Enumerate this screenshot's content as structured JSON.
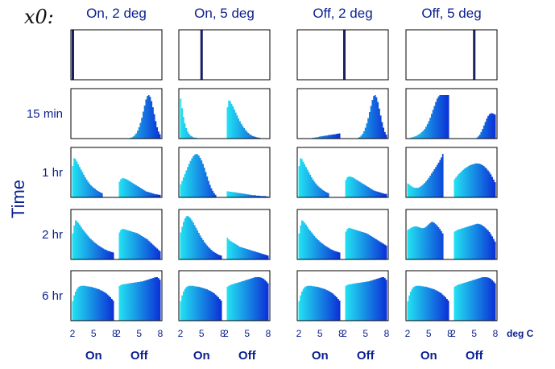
{
  "chart_data": {
    "type": "area",
    "x0_label": "x0:",
    "columns": [
      "On, 2 deg",
      "On, 5 deg",
      "Off, 2 deg",
      "Off, 5 deg"
    ],
    "rows": [
      "",
      "15 min",
      "1 hr",
      "2 hr",
      "6 hr"
    ],
    "ylabel": "Time",
    "xunit": "deg C",
    "segments": [
      "On",
      "Off"
    ],
    "xticks": [
      "2",
      "5",
      "8"
    ],
    "xlim_per_segment": [
      2,
      8
    ],
    "colors": {
      "low": "#22e3f2",
      "high": "#0b2fd6",
      "frame": "#000000",
      "initial": "#1a1f5e"
    },
    "initial_positions": [
      {
        "segment": "On",
        "x": 2
      },
      {
        "segment": "On",
        "x": 5
      },
      {
        "segment": "Off",
        "x": 2
      },
      {
        "segment": "Off",
        "x": 5
      }
    ],
    "panels": [
      [
        {
          "on": [
            0,
            0,
            0,
            0,
            0,
            0,
            0,
            0,
            0,
            0,
            0,
            0,
            0,
            0,
            0,
            0,
            0,
            0,
            0,
            0,
            0,
            0,
            0,
            0,
            0,
            0,
            0,
            0,
            0,
            0
          ],
          "off": [
            0,
            0,
            0,
            0,
            0,
            0,
            0,
            0.01,
            0.02,
            0.03,
            0.05,
            0.08,
            0.12,
            0.18,
            0.26,
            0.36,
            0.48,
            0.62,
            0.76,
            0.9,
            0.98,
            1,
            0.96,
            0.86,
            0.72,
            0.56,
            0.4,
            0.26,
            0.16,
            0.1
          ]
        },
        {
          "on": [
            0.92,
            0.7,
            0.5,
            0.35,
            0.24,
            0.16,
            0.11,
            0.07,
            0.05,
            0.03,
            0.02,
            0.02,
            0.01,
            0.01,
            0.01,
            0,
            0,
            0,
            0,
            0,
            0,
            0,
            0,
            0,
            0,
            0,
            0,
            0,
            0,
            0
          ],
          "off": [
            0.72,
            0.88,
            0.86,
            0.8,
            0.74,
            0.67,
            0.6,
            0.53,
            0.46,
            0.4,
            0.34,
            0.29,
            0.24,
            0.2,
            0.16,
            0.13,
            0.1,
            0.08,
            0.06,
            0.05,
            0.04,
            0.03,
            0.02,
            0.02,
            0.01,
            0.01,
            0.01,
            0.01,
            0,
            0
          ]
        },
        {
          "on": [
            0,
            0,
            0,
            0,
            0,
            0,
            0,
            0,
            0.01,
            0.01,
            0.02,
            0.02,
            0.03,
            0.03,
            0.04,
            0.05,
            0.05,
            0.06,
            0.06,
            0.07,
            0.07,
            0.08,
            0.08,
            0.09,
            0.09,
            0.1,
            0.1,
            0.11,
            0.11,
            0.12
          ],
          "off": [
            0,
            0,
            0,
            0,
            0,
            0,
            0,
            0,
            0.01,
            0.02,
            0.04,
            0.07,
            0.11,
            0.17,
            0.25,
            0.35,
            0.47,
            0.61,
            0.75,
            0.89,
            0.98,
            1,
            0.95,
            0.84,
            0.69,
            0.53,
            0.38,
            0.25,
            0.15,
            0.09
          ]
        },
        {
          "on": [
            0.01,
            0.01,
            0.02,
            0.03,
            0.04,
            0.05,
            0.06,
            0.08,
            0.1,
            0.12,
            0.15,
            0.18,
            0.22,
            0.27,
            0.33,
            0.4,
            0.48,
            0.57,
            0.66,
            0.75,
            0.84,
            0.92,
            0.97,
            1,
            1,
            1,
            1,
            1,
            1,
            1
          ],
          "off": [
            0,
            0,
            0,
            0,
            0,
            0,
            0,
            0,
            0,
            0,
            0,
            0,
            0,
            0,
            0,
            0,
            0.02,
            0.05,
            0.09,
            0.15,
            0.22,
            0.3,
            0.38,
            0.46,
            0.52,
            0.56,
            0.58,
            0.58,
            0.57,
            0.55
          ]
        }
      ],
      [
        {
          "on": [
            0.72,
            0.9,
            0.88,
            0.82,
            0.76,
            0.7,
            0.64,
            0.58,
            0.52,
            0.46,
            0.41,
            0.36,
            0.32,
            0.28,
            0.25,
            0.22,
            0.2,
            0.17,
            0.15,
            0.13,
            0.11,
            0.1,
            0,
            0,
            0,
            0,
            0,
            0,
            0,
            0
          ],
          "off": [
            0.36,
            0.42,
            0.44,
            0.44,
            0.43,
            0.42,
            0.4,
            0.38,
            0.36,
            0.34,
            0.32,
            0.3,
            0.28,
            0.26,
            0.24,
            0.22,
            0.2,
            0.18,
            0.16,
            0.14,
            0.13,
            0.12,
            0.11,
            0.1,
            0.09,
            0.08,
            0.07,
            0.07,
            0.06,
            0.06
          ]
        },
        {
          "on": [
            0.3,
            0.38,
            0.46,
            0.54,
            0.62,
            0.7,
            0.77,
            0.84,
            0.9,
            0.95,
            0.98,
            1,
            0.99,
            0.96,
            0.91,
            0.85,
            0.77,
            0.68,
            0.58,
            0.48,
            0.38,
            0.29,
            0.21,
            0.15,
            0.1,
            0.06,
            0,
            0,
            0,
            0
          ],
          "off": [
            0.14,
            0.14,
            0.13,
            0.13,
            0.12,
            0.12,
            0.11,
            0.11,
            0.1,
            0.1,
            0.09,
            0.09,
            0.08,
            0.08,
            0.07,
            0.07,
            0.06,
            0.06,
            0.05,
            0.05,
            0.05,
            0.04,
            0.04,
            0.04,
            0.03,
            0.03,
            0.03,
            0.03,
            0.02,
            0.02
          ]
        },
        {
          "on": [
            0.72,
            0.9,
            0.88,
            0.82,
            0.76,
            0.7,
            0.64,
            0.58,
            0.52,
            0.46,
            0.41,
            0.36,
            0.32,
            0.28,
            0.25,
            0.22,
            0.2,
            0.17,
            0.15,
            0.13,
            0.11,
            0.1,
            0,
            0,
            0,
            0,
            0,
            0,
            0,
            0
          ],
          "off": [
            0.4,
            0.46,
            0.48,
            0.48,
            0.47,
            0.46,
            0.44,
            0.42,
            0.4,
            0.38,
            0.36,
            0.34,
            0.32,
            0.3,
            0.28,
            0.26,
            0.24,
            0.22,
            0.2,
            0.18,
            0.16,
            0.15,
            0.14,
            0.13,
            0.12,
            0.11,
            0.1,
            0.09,
            0.08,
            0.08
          ]
        },
        {
          "on": [
            0.32,
            0.3,
            0.27,
            0.25,
            0.23,
            0.22,
            0.22,
            0.22,
            0.23,
            0.25,
            0.27,
            0.3,
            0.33,
            0.37,
            0.41,
            0.45,
            0.5,
            0.55,
            0.6,
            0.65,
            0.7,
            0.75,
            0.8,
            0.86,
            0.92,
            1,
            0,
            0,
            0,
            0
          ],
          "off": [
            0.42,
            0.46,
            0.5,
            0.54,
            0.57,
            0.6,
            0.63,
            0.66,
            0.68,
            0.7,
            0.72,
            0.74,
            0.75,
            0.76,
            0.77,
            0.78,
            0.78,
            0.78,
            0.77,
            0.76,
            0.74,
            0.72,
            0.69,
            0.66,
            0.62,
            0.58,
            0.53,
            0.47,
            0.41,
            0.35
          ]
        }
      ],
      [
        {
          "on": [
            0.6,
            0.78,
            0.9,
            0.88,
            0.84,
            0.8,
            0.75,
            0.7,
            0.66,
            0.62,
            0.58,
            0.54,
            0.5,
            0.47,
            0.44,
            0.41,
            0.38,
            0.36,
            0.33,
            0.31,
            0.29,
            0.27,
            0.25,
            0.23,
            0.22,
            0.2,
            0.19,
            0.18,
            0.17,
            0.16
          ],
          "off": [
            0.62,
            0.68,
            0.7,
            0.7,
            0.69,
            0.68,
            0.67,
            0.66,
            0.65,
            0.64,
            0.63,
            0.62,
            0.61,
            0.6,
            0.58,
            0.56,
            0.54,
            0.52,
            0.5,
            0.48,
            0.46,
            0.43,
            0.4,
            0.37,
            0.34,
            0.31,
            0.28,
            0.25,
            0.22,
            0.19
          ]
        },
        {
          "on": [
            0.62,
            0.75,
            0.86,
            0.94,
            0.99,
            1,
            0.98,
            0.95,
            0.9,
            0.85,
            0.79,
            0.73,
            0.67,
            0.61,
            0.55,
            0.5,
            0.45,
            0.4,
            0.36,
            0.32,
            0.28,
            0.25,
            0.22,
            0.19,
            0.17,
            0.15,
            0.13,
            0.11,
            0.1,
            0.09
          ],
          "off": [
            0.5,
            0.46,
            0.43,
            0.41,
            0.39,
            0.37,
            0.35,
            0.33,
            0.31,
            0.29,
            0.28,
            0.27,
            0.26,
            0.25,
            0.24,
            0.23,
            0.22,
            0.21,
            0.2,
            0.19,
            0.18,
            0.17,
            0.16,
            0.15,
            0.14,
            0.13,
            0.12,
            0.11,
            0.1,
            0.09
          ]
        },
        {
          "on": [
            0.6,
            0.78,
            0.9,
            0.88,
            0.84,
            0.8,
            0.75,
            0.7,
            0.66,
            0.62,
            0.58,
            0.54,
            0.5,
            0.47,
            0.44,
            0.41,
            0.38,
            0.36,
            0.33,
            0.31,
            0.29,
            0.27,
            0.25,
            0.23,
            0.22,
            0.2,
            0.19,
            0.18,
            0.17,
            0.16
          ],
          "off": [
            0.64,
            0.7,
            0.72,
            0.72,
            0.71,
            0.7,
            0.69,
            0.68,
            0.67,
            0.66,
            0.65,
            0.64,
            0.63,
            0.62,
            0.61,
            0.6,
            0.58,
            0.56,
            0.54,
            0.52,
            0.5,
            0.48,
            0.46,
            0.44,
            0.42,
            0.4,
            0.38,
            0.36,
            0.34,
            0.32
          ]
        },
        {
          "on": [
            0.68,
            0.7,
            0.72,
            0.74,
            0.75,
            0.76,
            0.76,
            0.75,
            0.74,
            0.73,
            0.72,
            0.72,
            0.73,
            0.75,
            0.78,
            0.81,
            0.84,
            0.86,
            0.86,
            0.84,
            0.81,
            0.78,
            0.74,
            0.7,
            0.65,
            0.6,
            0,
            0,
            0,
            0
          ],
          "off": [
            0.64,
            0.66,
            0.68,
            0.69,
            0.7,
            0.71,
            0.72,
            0.73,
            0.74,
            0.75,
            0.76,
            0.77,
            0.78,
            0.79,
            0.8,
            0.81,
            0.82,
            0.82,
            0.81,
            0.8,
            0.78,
            0.76,
            0.73,
            0.7,
            0.67,
            0.63,
            0.58,
            0.53,
            0.47,
            0.41
          ]
        }
      ],
      [
        {
          "on": [
            0.45,
            0.58,
            0.67,
            0.73,
            0.77,
            0.79,
            0.8,
            0.8,
            0.8,
            0.8,
            0.79,
            0.79,
            0.78,
            0.78,
            0.77,
            0.76,
            0.75,
            0.74,
            0.73,
            0.72,
            0.7,
            0.69,
            0.67,
            0.65,
            0.63,
            0.6,
            0.57,
            0.54,
            0.5,
            0.46
          ],
          "off": [
            0.8,
            0.82,
            0.83,
            0.84,
            0.84,
            0.85,
            0.85,
            0.86,
            0.86,
            0.87,
            0.87,
            0.88,
            0.88,
            0.89,
            0.89,
            0.9,
            0.9,
            0.91,
            0.92,
            0.93,
            0.94,
            0.95,
            0.96,
            0.97,
            0.98,
            0.99,
            1,
            1,
            0.98,
            0.94
          ]
        },
        {
          "on": [
            0.45,
            0.58,
            0.67,
            0.73,
            0.77,
            0.79,
            0.8,
            0.8,
            0.8,
            0.8,
            0.79,
            0.79,
            0.78,
            0.78,
            0.77,
            0.76,
            0.75,
            0.74,
            0.73,
            0.72,
            0.7,
            0.69,
            0.67,
            0.65,
            0.63,
            0.6,
            0.57,
            0.54,
            0.5,
            0.46
          ],
          "off": [
            0.78,
            0.8,
            0.82,
            0.83,
            0.84,
            0.85,
            0.86,
            0.87,
            0.88,
            0.89,
            0.9,
            0.91,
            0.92,
            0.93,
            0.94,
            0.95,
            0.96,
            0.97,
            0.98,
            0.99,
            1,
            1,
            1,
            1,
            0.99,
            0.98,
            0.96,
            0.93,
            0.9,
            0.86
          ]
        },
        {
          "on": [
            0.45,
            0.58,
            0.67,
            0.73,
            0.77,
            0.79,
            0.8,
            0.8,
            0.8,
            0.8,
            0.79,
            0.79,
            0.78,
            0.78,
            0.77,
            0.76,
            0.75,
            0.74,
            0.73,
            0.72,
            0.7,
            0.69,
            0.67,
            0.65,
            0.63,
            0.6,
            0.57,
            0.54,
            0.5,
            0.46
          ],
          "off": [
            0.8,
            0.82,
            0.83,
            0.84,
            0.84,
            0.85,
            0.85,
            0.86,
            0.86,
            0.87,
            0.87,
            0.88,
            0.88,
            0.89,
            0.89,
            0.9,
            0.9,
            0.91,
            0.92,
            0.93,
            0.94,
            0.95,
            0.96,
            0.97,
            0.98,
            0.99,
            1,
            1,
            0.98,
            0.94
          ]
        },
        {
          "on": [
            0.45,
            0.58,
            0.67,
            0.73,
            0.77,
            0.79,
            0.8,
            0.8,
            0.8,
            0.8,
            0.79,
            0.79,
            0.78,
            0.78,
            0.77,
            0.76,
            0.75,
            0.74,
            0.73,
            0.72,
            0.7,
            0.69,
            0.67,
            0.65,
            0.63,
            0.6,
            0.57,
            0.54,
            0.5,
            0.46
          ],
          "off": [
            0.78,
            0.8,
            0.82,
            0.83,
            0.84,
            0.85,
            0.86,
            0.87,
            0.88,
            0.89,
            0.9,
            0.91,
            0.92,
            0.93,
            0.94,
            0.95,
            0.96,
            0.97,
            0.98,
            0.99,
            1,
            1,
            1,
            1,
            0.99,
            0.98,
            0.96,
            0.93,
            0.9,
            0.86
          ]
        }
      ]
    ]
  }
}
